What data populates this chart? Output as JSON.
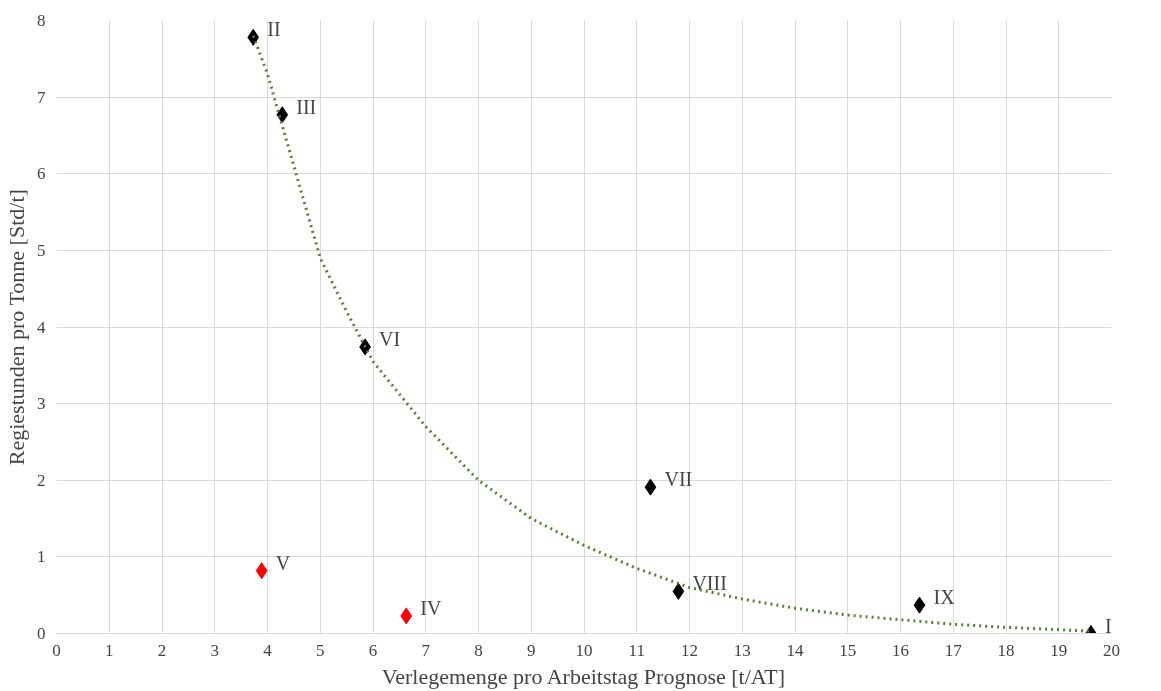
{
  "chart_data": {
    "type": "scatter",
    "xlabel": "Verlegemenge pro Arbeitstag Prognose [t/AT]",
    "ylabel": "Regiestunden pro Tonne [Std/t]",
    "xlim": [
      0,
      20
    ],
    "ylim": [
      0,
      8
    ],
    "xticks": [
      0,
      1,
      2,
      3,
      4,
      5,
      6,
      7,
      8,
      9,
      10,
      11,
      12,
      13,
      14,
      15,
      16,
      17,
      18,
      19,
      20
    ],
    "yticks": [
      0,
      1,
      2,
      3,
      4,
      5,
      6,
      7,
      8
    ],
    "grid": true,
    "marker": "diamond",
    "series": [
      {
        "color": "#000000",
        "x": [
          19.61,
          3.73,
          4.28,
          5.85,
          11.26,
          11.79,
          16.36
        ],
        "values": [
          0.0,
          7.78,
          6.77,
          3.74,
          1.91,
          0.55,
          0.37
        ]
      },
      {
        "color": "#ff0000",
        "x": [
          6.63,
          3.89
        ],
        "values": [
          0.23,
          0.82
        ]
      },
      {
        "type": "line",
        "line_style": "dotted",
        "marker": "none",
        "color": "#538135",
        "x": [
          3.73,
          4.0,
          4.5,
          5,
          5.5,
          6,
          7,
          8,
          9,
          10,
          11,
          12,
          13,
          14,
          15,
          16,
          17,
          18,
          19,
          19.6
        ],
        "values": [
          7.8,
          7.3,
          6.1,
          4.9,
          4.2,
          3.55,
          2.7,
          2.0,
          1.5,
          1.15,
          0.85,
          0.6,
          0.45,
          0.33,
          0.24,
          0.18,
          0.12,
          0.08,
          0.05,
          0.03
        ]
      }
    ],
    "annotations": [
      {
        "text": "I",
        "x": 19.61,
        "y": 0.0
      },
      {
        "text": "II",
        "x": 3.73,
        "y": 7.78
      },
      {
        "text": "III",
        "x": 4.28,
        "y": 6.77
      },
      {
        "text": "IV",
        "x": 6.63,
        "y": 0.23
      },
      {
        "text": "V",
        "x": 3.89,
        "y": 0.82
      },
      {
        "text": "VI",
        "x": 5.85,
        "y": 3.74
      },
      {
        "text": "VII",
        "x": 11.26,
        "y": 1.91
      },
      {
        "text": "VIII",
        "x": 11.79,
        "y": 0.55
      },
      {
        "text": "IX",
        "x": 16.36,
        "y": 0.37
      }
    ]
  }
}
